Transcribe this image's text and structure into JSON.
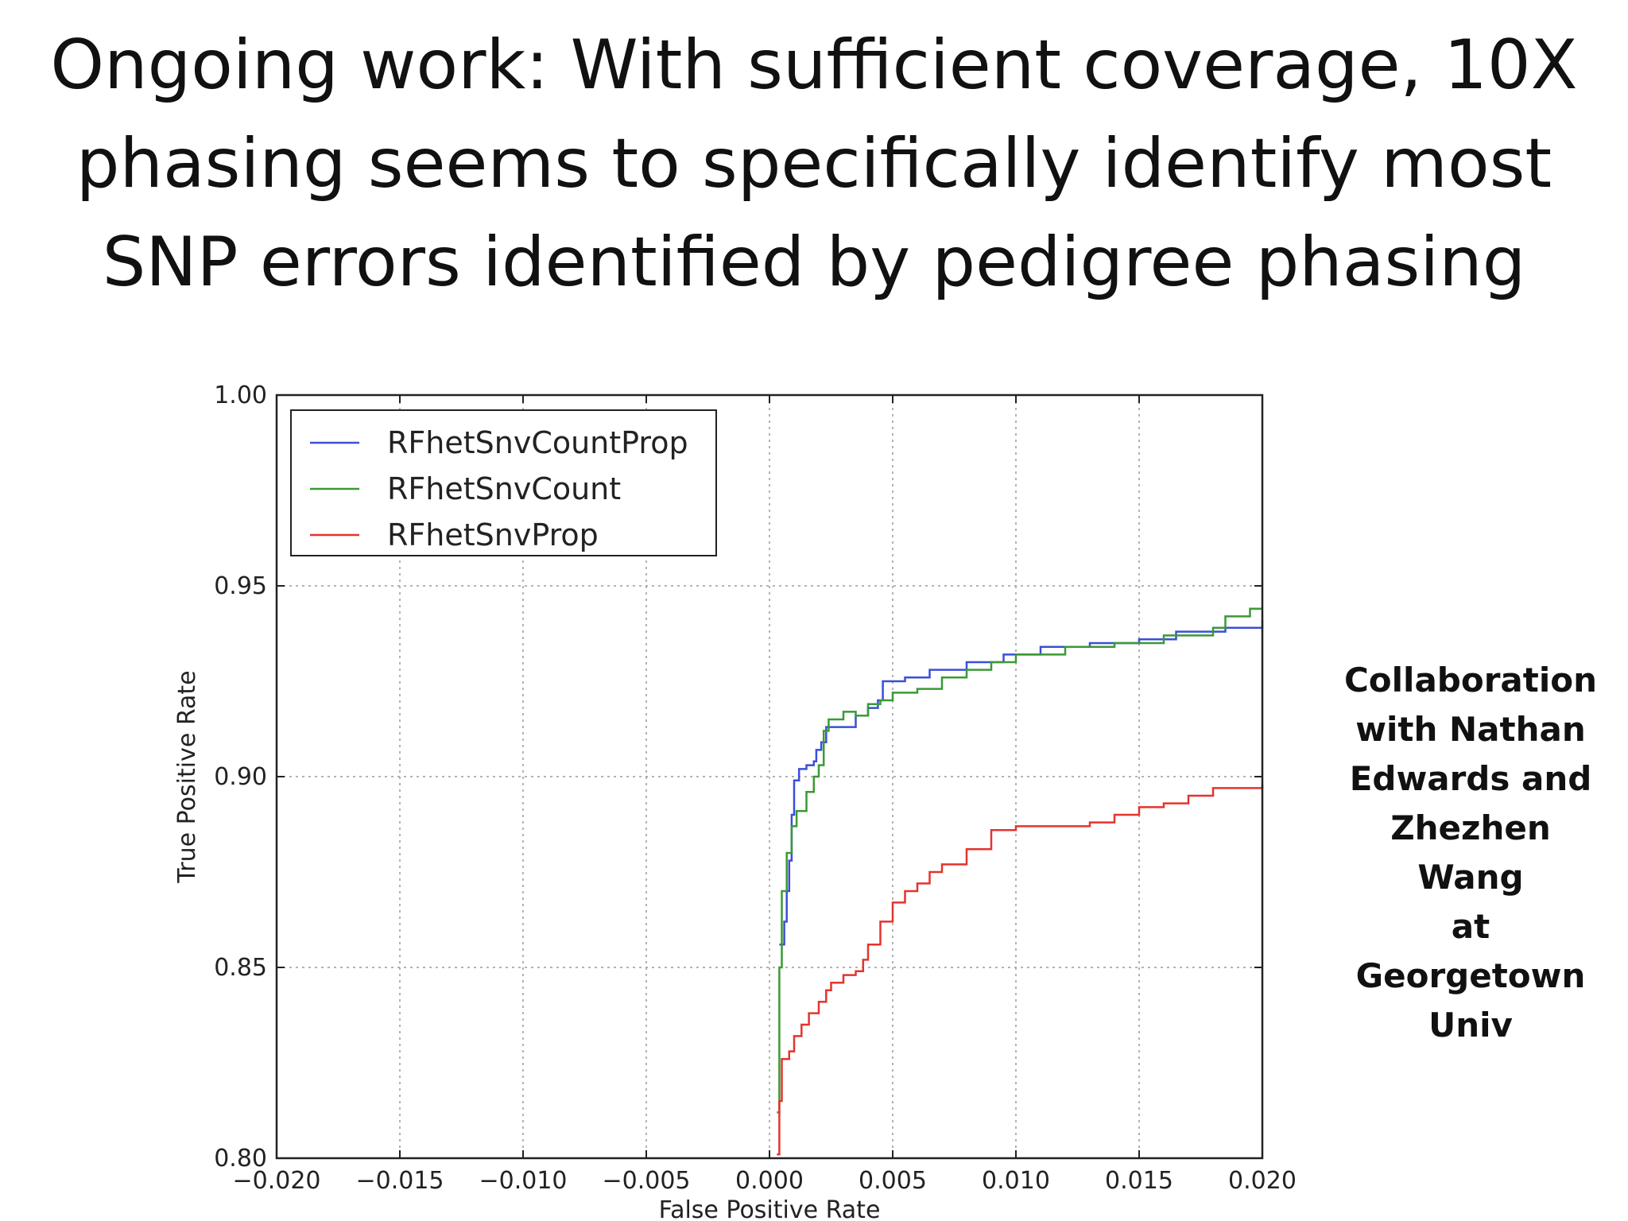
{
  "slide": {
    "title": "Ongoing work: With sufficient coverage, 10X phasing seems to specifically identify most SNP errors identified by pedigree phasing",
    "note_lines": [
      "Collaboration",
      "with Nathan",
      "Edwards and",
      "Zhezhen Wang",
      "at Georgetown",
      "Univ"
    ]
  },
  "chart_data": {
    "type": "line",
    "title": "",
    "xlabel": "False Positive Rate",
    "ylabel": "True Positive Rate",
    "xlim": [
      -0.02,
      0.02
    ],
    "ylim": [
      0.8,
      1.0
    ],
    "xticks": [
      -0.02,
      -0.015,
      -0.01,
      -0.005,
      0.0,
      0.005,
      0.01,
      0.015,
      0.02
    ],
    "xtick_labels": [
      "−0.020",
      "−0.015",
      "−0.010",
      "−0.005",
      "0.000",
      "0.005",
      "0.010",
      "0.015",
      "0.020"
    ],
    "yticks": [
      0.8,
      0.85,
      0.9,
      0.95,
      1.0
    ],
    "ytick_labels": [
      "0.80",
      "0.85",
      "0.90",
      "0.95",
      "1.00"
    ],
    "grid": true,
    "legend_position": "top-left",
    "series": [
      {
        "name": "RFhetSnvCountProp",
        "color": "#3b4fd6",
        "points": [
          [
            0.0004,
            0.856
          ],
          [
            0.0006,
            0.856
          ],
          [
            0.0006,
            0.862
          ],
          [
            0.0007,
            0.87
          ],
          [
            0.0008,
            0.878
          ],
          [
            0.0009,
            0.89
          ],
          [
            0.001,
            0.899
          ],
          [
            0.0012,
            0.902
          ],
          [
            0.0015,
            0.903
          ],
          [
            0.0018,
            0.904
          ],
          [
            0.0019,
            0.907
          ],
          [
            0.0021,
            0.909
          ],
          [
            0.0023,
            0.913
          ],
          [
            0.0028,
            0.913
          ],
          [
            0.0032,
            0.913
          ],
          [
            0.0035,
            0.916
          ],
          [
            0.004,
            0.918
          ],
          [
            0.0044,
            0.92
          ],
          [
            0.0046,
            0.925
          ],
          [
            0.0055,
            0.926
          ],
          [
            0.0065,
            0.928
          ],
          [
            0.008,
            0.93
          ],
          [
            0.0095,
            0.932
          ],
          [
            0.011,
            0.934
          ],
          [
            0.013,
            0.935
          ],
          [
            0.015,
            0.936
          ],
          [
            0.0165,
            0.938
          ],
          [
            0.0185,
            0.939
          ],
          [
            0.02,
            0.941
          ]
        ]
      },
      {
        "name": "RFhetSnvCount",
        "color": "#3a9a35",
        "points": [
          [
            0.0003,
            0.812
          ],
          [
            0.0004,
            0.85
          ],
          [
            0.0005,
            0.87
          ],
          [
            0.0007,
            0.88
          ],
          [
            0.0009,
            0.887
          ],
          [
            0.0011,
            0.891
          ],
          [
            0.0015,
            0.896
          ],
          [
            0.0018,
            0.9
          ],
          [
            0.002,
            0.903
          ],
          [
            0.0022,
            0.912
          ],
          [
            0.0024,
            0.915
          ],
          [
            0.003,
            0.917
          ],
          [
            0.0035,
            0.916
          ],
          [
            0.004,
            0.919
          ],
          [
            0.0045,
            0.92
          ],
          [
            0.005,
            0.922
          ],
          [
            0.006,
            0.923
          ],
          [
            0.007,
            0.926
          ],
          [
            0.008,
            0.928
          ],
          [
            0.009,
            0.93
          ],
          [
            0.01,
            0.932
          ],
          [
            0.012,
            0.934
          ],
          [
            0.014,
            0.935
          ],
          [
            0.016,
            0.937
          ],
          [
            0.018,
            0.939
          ],
          [
            0.0185,
            0.942
          ],
          [
            0.0195,
            0.944
          ],
          [
            0.02,
            0.944
          ]
        ]
      },
      {
        "name": "RFhetSnvProp",
        "color": "#e3342f",
        "points": [
          [
            0.0003,
            0.801
          ],
          [
            0.0004,
            0.815
          ],
          [
            0.0005,
            0.826
          ],
          [
            0.0008,
            0.828
          ],
          [
            0.001,
            0.832
          ],
          [
            0.0013,
            0.835
          ],
          [
            0.0016,
            0.838
          ],
          [
            0.002,
            0.841
          ],
          [
            0.0023,
            0.844
          ],
          [
            0.0025,
            0.846
          ],
          [
            0.003,
            0.848
          ],
          [
            0.0035,
            0.849
          ],
          [
            0.0038,
            0.852
          ],
          [
            0.004,
            0.856
          ],
          [
            0.0045,
            0.862
          ],
          [
            0.005,
            0.867
          ],
          [
            0.0055,
            0.87
          ],
          [
            0.006,
            0.872
          ],
          [
            0.0065,
            0.875
          ],
          [
            0.007,
            0.877
          ],
          [
            0.008,
            0.881
          ],
          [
            0.009,
            0.886
          ],
          [
            0.01,
            0.887
          ],
          [
            0.011,
            0.887
          ],
          [
            0.013,
            0.888
          ],
          [
            0.014,
            0.89
          ],
          [
            0.015,
            0.892
          ],
          [
            0.016,
            0.893
          ],
          [
            0.017,
            0.895
          ],
          [
            0.018,
            0.897
          ],
          [
            0.019,
            0.897
          ],
          [
            0.02,
            0.898
          ]
        ]
      }
    ]
  }
}
